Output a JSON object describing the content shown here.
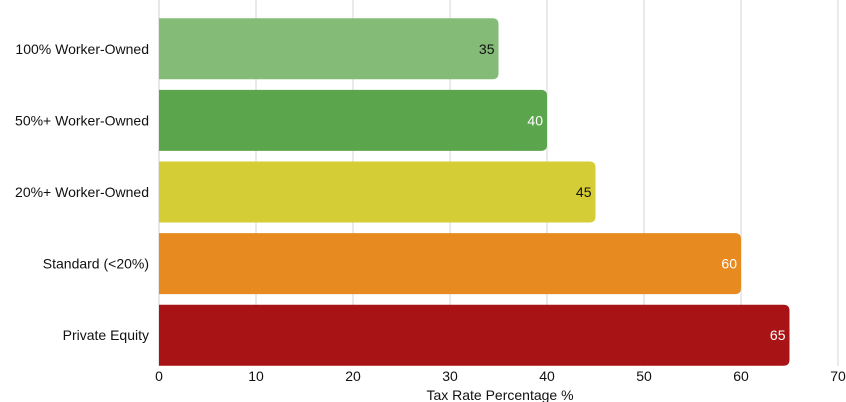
{
  "chart_data": {
    "type": "bar",
    "orientation": "horizontal",
    "categories": [
      "100% Worker-Owned",
      "50%+ Worker-Owned",
      "20%+ Worker-Owned",
      "Standard (<20%)",
      "Private Equity"
    ],
    "values": [
      35,
      40,
      45,
      60,
      65
    ],
    "value_labels": [
      "35",
      "40",
      "45",
      "60",
      "65"
    ],
    "colors": [
      "#84bb77",
      "#5ba64c",
      "#d5cd35",
      "#e78b21",
      "#a81415"
    ],
    "label_colors": [
      "#111111",
      "#ffffff",
      "#111111",
      "#ffffff",
      "#ffffff"
    ],
    "xlabel": "Tax Rate Percentage %",
    "ylabel": "",
    "title": "",
    "xlim": [
      0,
      70
    ],
    "xticks": [
      0,
      10,
      20,
      30,
      40,
      50,
      60,
      70
    ],
    "xtick_labels": [
      "0",
      "10",
      "20",
      "30",
      "40",
      "50",
      "60",
      "70"
    ],
    "grid": "vertical",
    "legend": "none"
  }
}
